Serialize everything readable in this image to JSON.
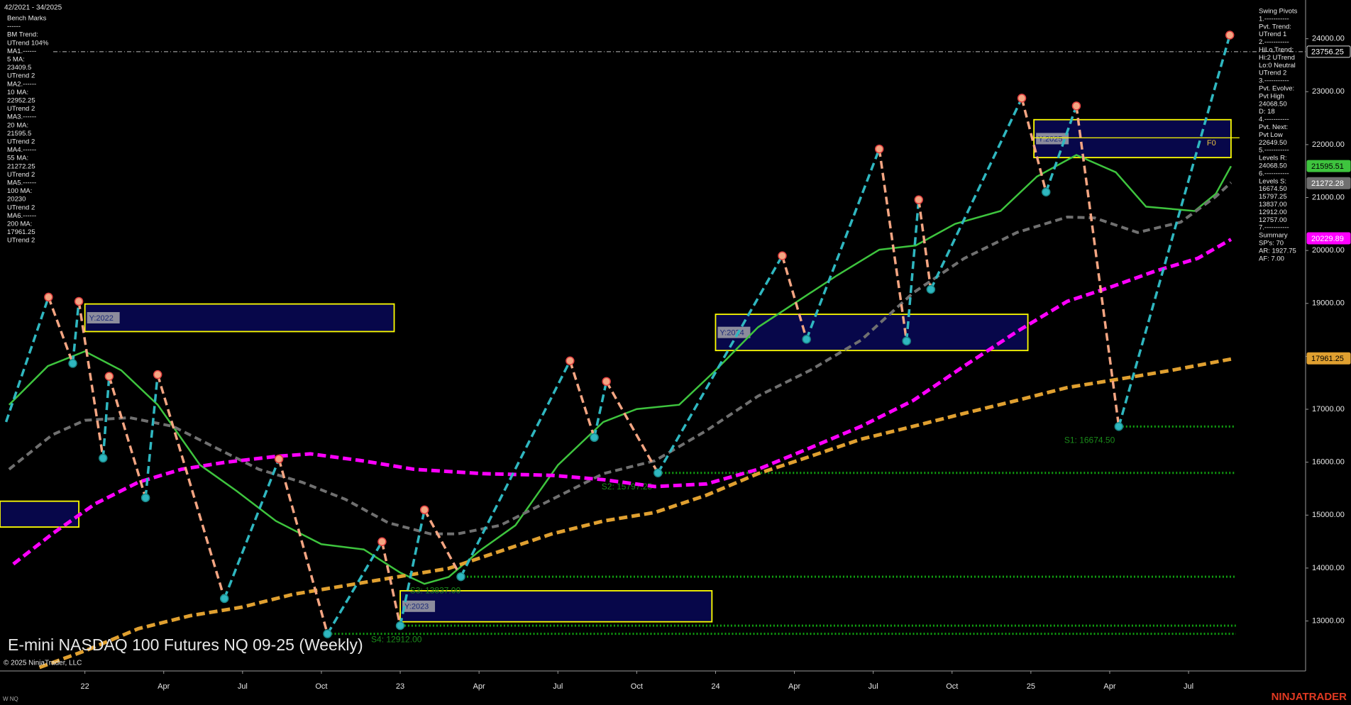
{
  "chart_data": {
    "type": "line",
    "title": "E-mini NASDAQ 100 Futures NQ 09-25 (Weekly)",
    "date_range": "42/2021 - 34/2025",
    "copyright": "© 2025 NinjaTrader, LLC",
    "instrument": "W NQ",
    "brand": "NINJATRADER",
    "xlim": [
      -14,
      201.3
    ],
    "ylim": [
      12056,
      24732
    ],
    "xticks": [
      {
        "value": 0,
        "label": "22"
      },
      {
        "value": 13,
        "label": "Apr"
      },
      {
        "value": 26,
        "label": "Jul"
      },
      {
        "value": 39,
        "label": "Oct"
      },
      {
        "value": 52,
        "label": "23"
      },
      {
        "value": 65,
        "label": "Apr"
      },
      {
        "value": 78,
        "label": "Jul"
      },
      {
        "value": 91,
        "label": "Oct"
      },
      {
        "value": 104,
        "label": "24"
      },
      {
        "value": 117,
        "label": "Apr"
      },
      {
        "value": 130,
        "label": "Jul"
      },
      {
        "value": 143,
        "label": "Oct"
      },
      {
        "value": 156,
        "label": "25"
      },
      {
        "value": 169,
        "label": "Apr"
      },
      {
        "value": 182,
        "label": "Jul"
      }
    ],
    "yticks": [
      {
        "value": 13000,
        "label": "13000.00"
      },
      {
        "value": 14000,
        "label": "14000.00"
      },
      {
        "value": 15000,
        "label": "15000.00"
      },
      {
        "value": 16000,
        "label": "16000.00"
      },
      {
        "value": 17000,
        "label": "17000.00"
      },
      {
        "value": 18000,
        "label": "18000.00"
      },
      {
        "value": 19000,
        "label": "19000.00"
      },
      {
        "value": 20000,
        "label": "20000.00"
      },
      {
        "value": 21000,
        "label": "21000.00"
      },
      {
        "value": 22000,
        "label": "22000.00"
      },
      {
        "value": 23000,
        "label": "23000.00"
      },
      {
        "value": 24000,
        "label": "24000.00"
      }
    ],
    "series": [
      {
        "color": "#3ec43e",
        "width": 2.5,
        "dash": "none",
        "x": [
          -12.5,
          -6.1,
          0,
          6,
          12,
          19,
          25,
          31.5,
          39,
          46,
          52,
          56,
          60,
          65,
          71,
          78,
          85.5,
          91,
          98,
          104,
          111,
          117.5,
          124,
          131,
          137,
          143.5,
          151,
          157,
          163.5,
          170,
          175,
          183,
          186.5,
          189
        ],
        "values": [
          17085,
          17817,
          18094,
          17736,
          17085,
          15946,
          15458,
          14889,
          14450,
          14352,
          13913,
          13701,
          13831,
          14319,
          14807,
          15946,
          16760,
          17004,
          17085,
          17736,
          18550,
          19038,
          19526,
          20014,
          20095,
          20502,
          20746,
          21397,
          21804,
          21478,
          20827,
          20746,
          21071,
          21592
        ]
      },
      {
        "color": "#707070",
        "width": 4,
        "dash": "10 6",
        "x": [
          -12.5,
          -5.4,
          0,
          7.4,
          14.5,
          21.6,
          28.7,
          35.8,
          43,
          50,
          57,
          61.4,
          68.5,
          77,
          85.5,
          94,
          102.5,
          111,
          119.6,
          128,
          136.6,
          145,
          153.7,
          162,
          166.5,
          173.6,
          180.7,
          186.4,
          189
        ],
        "values": [
          15865,
          16516,
          16792,
          16841,
          16678,
          16272,
          15865,
          15621,
          15296,
          14856,
          14645,
          14645,
          14807,
          15296,
          15784,
          16028,
          16597,
          17248,
          17736,
          18305,
          19200,
          19851,
          20339,
          20632,
          20616,
          20339,
          20534,
          21010,
          21283
        ]
      },
      {
        "color": "#ff00ff",
        "width": 5,
        "dash": "12 6",
        "x": [
          -11.8,
          -5.4,
          1.7,
          8.8,
          15.9,
          23,
          31.5,
          37.2,
          45.7,
          54.3,
          65.6,
          77,
          85.5,
          94,
          102.5,
          111,
          119.6,
          128,
          136.6,
          145,
          153.7,
          162,
          169.3,
          176.4,
          183.5,
          189
        ],
        "values": [
          14075,
          14645,
          15214,
          15621,
          15865,
          15995,
          16109,
          16158,
          16028,
          15865,
          15784,
          15751,
          15670,
          15540,
          15589,
          15865,
          16272,
          16678,
          17167,
          17817,
          18468,
          19038,
          19314,
          19607,
          19851,
          20209
        ]
      },
      {
        "color": "#e0a030",
        "width": 5,
        "dash": "12 6",
        "x": [
          -7.5,
          0.3,
          8.8,
          17.3,
          25.9,
          34.4,
          43,
          51.4,
          60,
          68.5,
          77,
          85.5,
          94,
          102.5,
          111,
          119.6,
          128,
          136.6,
          145,
          153.7,
          162,
          170.7,
          179.2,
          189
        ],
        "values": [
          12123,
          12448,
          12855,
          13099,
          13262,
          13506,
          13669,
          13831,
          13994,
          14319,
          14645,
          14889,
          15051,
          15377,
          15784,
          16109,
          16435,
          16678,
          16923,
          17167,
          17411,
          17573,
          17736,
          17948
        ]
      }
    ],
    "swing_pivots": {
      "up_color": "#2fb7c0",
      "down_color": "#f4a582",
      "x": [
        -13,
        -6,
        -2,
        -1,
        3,
        4,
        10,
        12,
        23,
        32,
        40,
        49,
        52,
        56,
        62,
        80,
        84,
        86,
        94.5,
        115,
        119,
        131,
        135.5,
        137.5,
        139.5,
        154.5,
        158.5,
        163.5,
        170.5,
        188.8
      ],
      "values": [
        16760,
        19119,
        17866,
        19038,
        16077,
        17622,
        15328,
        17655,
        13424,
        16060,
        12757,
        14498,
        12912,
        15100,
        13837,
        17915,
        16467,
        17525,
        15797.25,
        19900,
        18322,
        21917,
        18289,
        20958,
        19265,
        22877,
        21104,
        22731,
        16674.5,
        24068.5
      ]
    },
    "boxes": [
      {
        "x0": -14,
        "x1": -1,
        "y0": 14775,
        "y1": 15263
      },
      {
        "label": "Y:2022",
        "x0": 0,
        "x1": 51,
        "y0": 18468,
        "y1": 18989
      },
      {
        "label": "Y:2023",
        "x0": 52,
        "x1": 103.4,
        "y0": 12985,
        "y1": 13571
      },
      {
        "label": "Y:2024",
        "x0": 104,
        "x1": 155.5,
        "y0": 18110,
        "y1": 18794
      },
      {
        "label": "Y:2025",
        "x0": 156.5,
        "x1": 189,
        "y0": 21755,
        "y1": 22471
      }
    ],
    "f0": {
      "label": "F0",
      "value": 22129,
      "x0": 156.5,
      "x1": 189
    },
    "levels": [
      {
        "label": "S1: 16674.50",
        "value": 16674.5,
        "from": 170.5,
        "label_x": 161.5
      },
      {
        "label": "S2: 15797.25",
        "value": 15797.25,
        "from": 94.5,
        "label_x": 85.2
      },
      {
        "label": "S3: 13837.00",
        "value": 13837,
        "from": 62.4,
        "label_x": 53.6
      },
      {
        "label": "S4: 12912.00",
        "value": 12912,
        "from": 52.1,
        "label_x": 47.2
      },
      {
        "value": 12757,
        "from": 40
      }
    ],
    "last_price": 23756.25,
    "price_flags": [
      {
        "value": 21595.51,
        "color": "#3ec43e",
        "text_color": "#000000"
      },
      {
        "value": 21272.28,
        "color": "#707070",
        "text_color": "#ffffff"
      },
      {
        "value": 20229.89,
        "color": "#ff00ff",
        "text_color": "#ffffff"
      },
      {
        "value": 17961.25,
        "color": "#e0a030",
        "text_color": "#000000"
      }
    ],
    "left_panel": [
      "Bench Marks",
      "------",
      "BM Trend:",
      "UTrend 104%",
      "MA1.------",
      "5 MA:",
      "23409.5",
      "UTrend 2",
      "MA2.------",
      "10 MA:",
      "22952.25",
      "UTrend 2",
      "MA3.------",
      "20 MA:",
      "21595.5",
      "UTrend 2",
      "MA4.------",
      "55 MA:",
      "21272.25",
      "UTrend 2",
      "MA5.------",
      "100 MA:",
      "20230",
      "UTrend 2",
      "MA6.------",
      "200 MA:",
      "17961.25",
      "UTrend 2"
    ],
    "right_panel": [
      "Swing Pivots",
      "1.-----------",
      "Pvt. Trend:",
      "UTrend 1",
      "2.-----------",
      "HiLo Trend:",
      "Hi:2 UTrend",
      "Lo:0 Neutral",
      "UTrend 2",
      "3.-----------",
      "Pvt. Evolve:",
      "Pvt High",
      "24068.50",
      "D: 18",
      "4.-----------",
      "Pvt. Next:",
      "Pvt Low",
      "22649.50",
      "5.-----------",
      "Levels R:",
      "24068.50",
      "6.-----------",
      "Levels S:",
      "16674.50",
      "15797.25",
      "13837.00",
      "12912.00",
      "12757.00",
      "7.-----------",
      "Summary",
      "SP's: 70",
      "AR: 1927.75",
      "AF: 7.00"
    ]
  }
}
